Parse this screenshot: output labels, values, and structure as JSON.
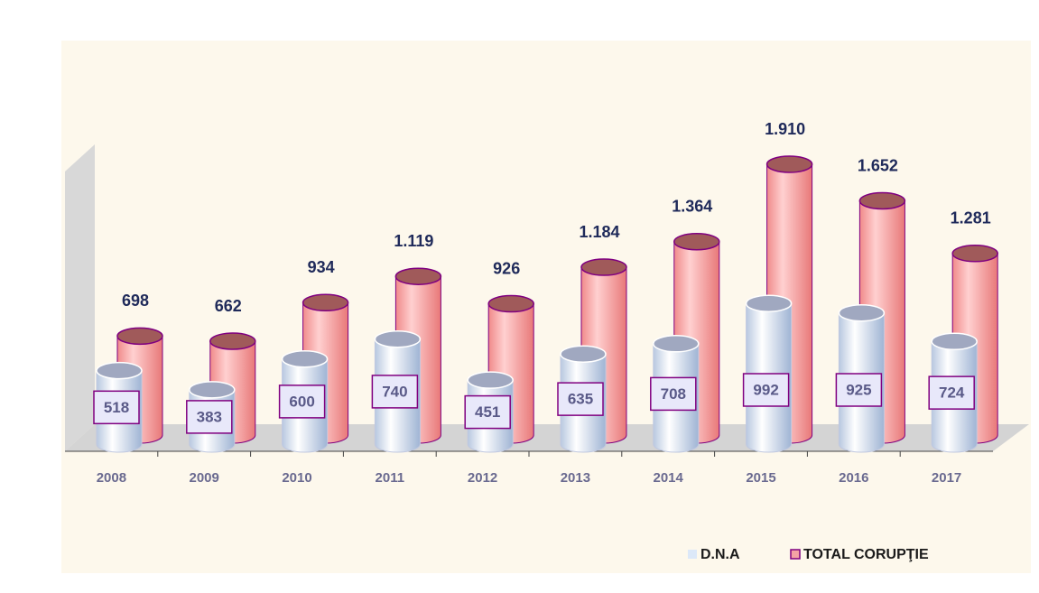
{
  "chart_data": {
    "type": "bar3d",
    "categories": [
      "2008",
      "2009",
      "2010",
      "2011",
      "2012",
      "2013",
      "2014",
      "2015",
      "2016",
      "2017"
    ],
    "series": [
      {
        "name": "D.N.A",
        "color": "#dce8f8",
        "values": [
          518,
          383,
          600,
          740,
          451,
          635,
          708,
          992,
          925,
          724
        ]
      },
      {
        "name": "TOTAL CORUPŢIE",
        "color": "#f4a4a4",
        "values": [
          698,
          662,
          934,
          1119,
          926,
          1184,
          1364,
          1910,
          1652,
          1281
        ],
        "value_labels": [
          "698",
          "662",
          "934",
          "1.119",
          "926",
          "1.184",
          "1.364",
          "1.910",
          "1.652",
          "1.281"
        ]
      }
    ],
    "legend": "bottom-right"
  }
}
